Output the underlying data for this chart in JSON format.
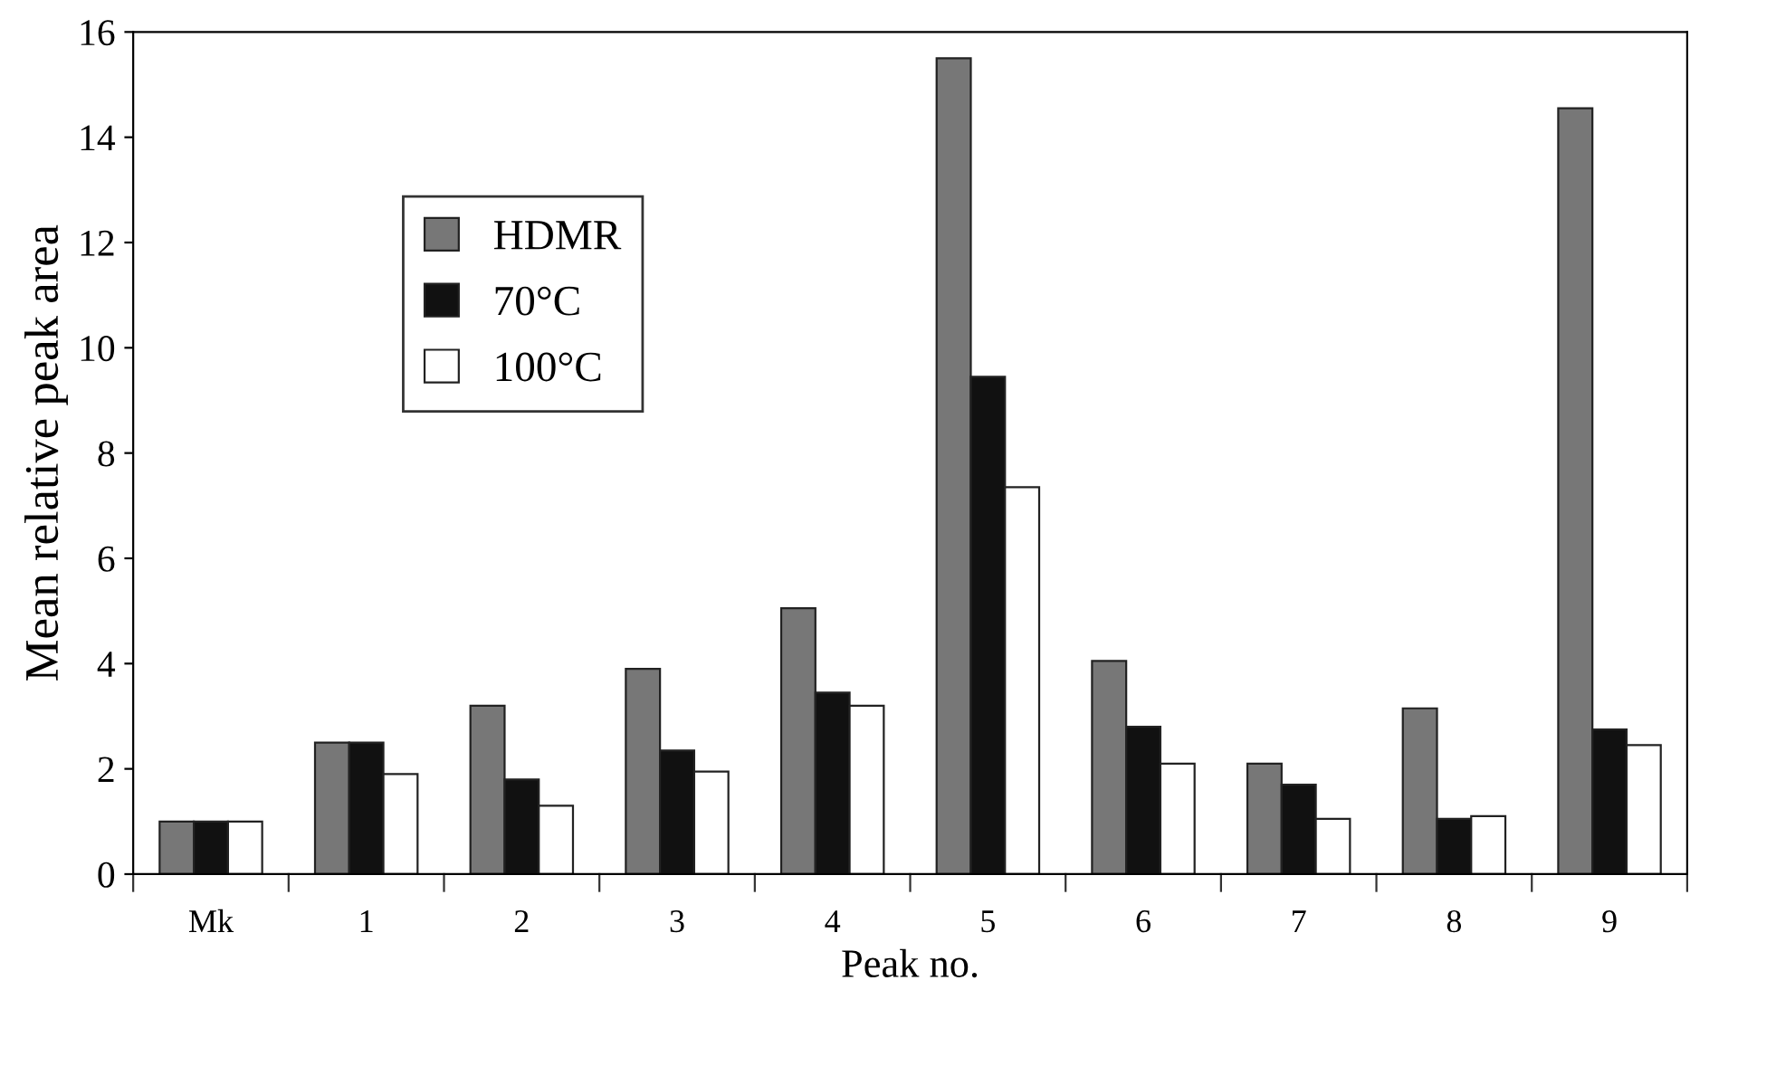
{
  "chart_data": {
    "type": "bar",
    "xlabel": "Peak no.",
    "ylabel": "Mean relative peak area",
    "categories": [
      "Mk",
      "1",
      "2",
      "3",
      "4",
      "5",
      "6",
      "7",
      "8",
      "9"
    ],
    "series": [
      {
        "name": "HDMR",
        "color": "#777777",
        "values": [
          1.0,
          2.5,
          3.2,
          3.9,
          5.05,
          15.5,
          4.05,
          2.1,
          3.15,
          14.55
        ]
      },
      {
        "name": "70°C",
        "color": "#111111",
        "values": [
          1.0,
          2.5,
          1.8,
          2.35,
          3.45,
          9.45,
          2.8,
          1.7,
          1.05,
          2.75
        ]
      },
      {
        "name": "100°C",
        "color": "#ffffff",
        "values": [
          1.0,
          1.9,
          1.3,
          1.95,
          3.2,
          7.35,
          2.1,
          1.05,
          1.1,
          2.45
        ]
      }
    ],
    "ylim": [
      0,
      16
    ],
    "yticks": [
      0,
      2,
      4,
      6,
      8,
      10,
      12,
      14,
      16
    ],
    "grid": false,
    "legend": "top left"
  }
}
